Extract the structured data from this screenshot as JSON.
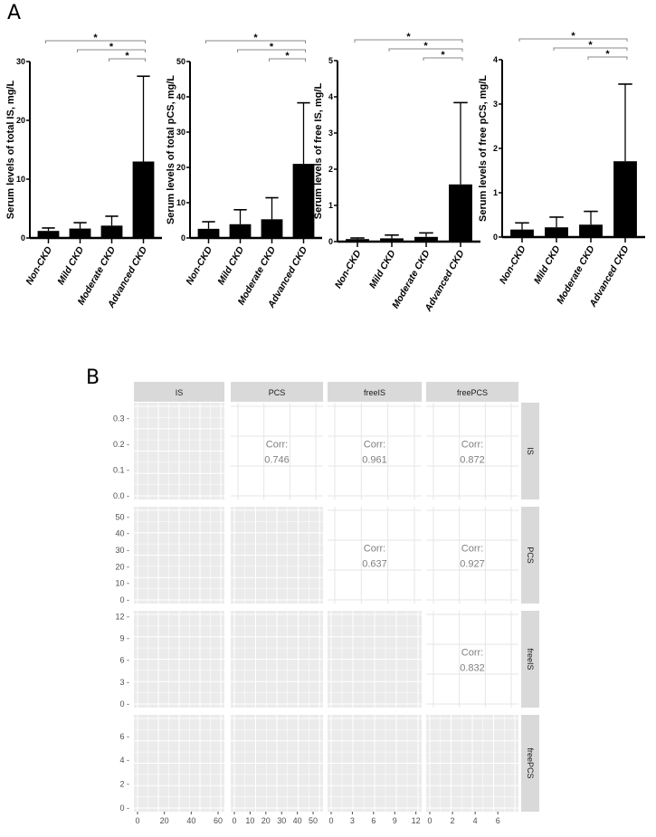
{
  "panel_a": {
    "label": "A",
    "categories": [
      "Non-CKD",
      "Mild CKD",
      "Moderate CKD",
      "Advanced CKD"
    ],
    "significance_marker": "*"
  },
  "panel_b": {
    "label": "B",
    "variables": [
      "IS",
      "PCS",
      "freeIS",
      "freePCS"
    ],
    "corr_label": "Corr:"
  },
  "chart_data": [
    {
      "type": "bar",
      "panel": "A1",
      "title": "",
      "xlabel": "",
      "ylabel": "Serum levels of  total IS,  mg/L",
      "categories": [
        "Non-CKD",
        "Mild CKD",
        "Moderate CKD",
        "Advanced CKD"
      ],
      "values": [
        1.2,
        1.6,
        2.1,
        13.0
      ],
      "error_upper": [
        1.7,
        2.6,
        3.7,
        27.5
      ],
      "ylim": [
        0,
        30
      ],
      "yticks": [
        0,
        10,
        20,
        30
      ],
      "significance": [
        [
          "Non-CKD",
          "Advanced CKD",
          "*"
        ],
        [
          "Mild CKD",
          "Advanced CKD",
          "*"
        ],
        [
          "Moderate CKD",
          "Advanced CKD",
          "*"
        ]
      ]
    },
    {
      "type": "bar",
      "panel": "A2",
      "title": "",
      "xlabel": "",
      "ylabel": "Serum levels of  total pCS,  mg/L",
      "categories": [
        "Non-CKD",
        "Mild CKD",
        "Moderate CKD",
        "Advanced CKD"
      ],
      "values": [
        2.6,
        3.9,
        5.3,
        21.0
      ],
      "error_upper": [
        4.6,
        8.0,
        11.4,
        38.3
      ],
      "ylim": [
        0,
        50
      ],
      "yticks": [
        0,
        10,
        20,
        30,
        40,
        50
      ],
      "significance": [
        [
          "Non-CKD",
          "Advanced CKD",
          "*"
        ],
        [
          "Mild CKD",
          "Advanced CKD",
          "*"
        ],
        [
          "Moderate CKD",
          "Advanced CKD",
          "*"
        ]
      ]
    },
    {
      "type": "bar",
      "panel": "A3",
      "title": "",
      "xlabel": "",
      "ylabel": "Serum levels of  free IS,  mg/L",
      "categories": [
        "Non-CKD",
        "Mild CKD",
        "Moderate CKD",
        "Advanced CKD"
      ],
      "values": [
        0.07,
        0.09,
        0.13,
        1.58
      ],
      "error_upper": [
        0.1,
        0.18,
        0.24,
        3.84
      ],
      "ylim": [
        0,
        5
      ],
      "yticks": [
        0,
        1,
        2,
        3,
        4,
        5
      ],
      "significance": [
        [
          "Non-CKD",
          "Advanced CKD",
          "*"
        ],
        [
          "Mild CKD",
          "Advanced CKD",
          "*"
        ],
        [
          "Moderate CKD",
          "Advanced CKD",
          "*"
        ]
      ]
    },
    {
      "type": "bar",
      "panel": "A4",
      "title": "",
      "xlabel": "",
      "ylabel": "Serum levels of  free pCS,  mg/L",
      "categories": [
        "Non-CKD",
        "Mild CKD",
        "Moderate CKD",
        "Advanced CKD"
      ],
      "values": [
        0.17,
        0.22,
        0.28,
        1.71
      ],
      "error_upper": [
        0.32,
        0.45,
        0.58,
        3.45
      ],
      "ylim": [
        0,
        4
      ],
      "yticks": [
        0,
        1,
        2,
        3,
        4
      ],
      "significance": [
        [
          "Non-CKD",
          "Advanced CKD",
          "*"
        ],
        [
          "Mild CKD",
          "Advanced CKD",
          "*"
        ],
        [
          "Moderate CKD",
          "Advanced CKD",
          "*"
        ]
      ]
    },
    {
      "type": "scatter",
      "panel": "B",
      "title": "Pairwise scatter-plot matrix (ggpairs)",
      "variables": [
        "IS",
        "PCS",
        "freeIS",
        "freePCS"
      ],
      "correlations": {
        "IS-PCS": 0.746,
        "IS-freeIS": 0.961,
        "IS-freePCS": 0.872,
        "PCS-freeIS": 0.637,
        "PCS-freePCS": 0.927,
        "freeIS-freePCS": 0.832
      },
      "axis_ticks": {
        "IS_density_y": [
          "0.0",
          "0.1",
          "0.2",
          "0.3"
        ],
        "PCS_y": [
          "0",
          "10",
          "20",
          "30",
          "40",
          "50"
        ],
        "freeIS_y": [
          "0",
          "3",
          "6",
          "9",
          "12"
        ],
        "freePCS_y": [
          "0",
          "2",
          "4",
          "6"
        ],
        "IS_x": [
          "0",
          "20",
          "40",
          "60"
        ],
        "PCS_x": [
          "0",
          "10",
          "20",
          "30",
          "40",
          "50"
        ],
        "freeIS_x": [
          "0",
          "3",
          "6",
          "9",
          "12"
        ],
        "freePCS_x": [
          "0",
          "2",
          "4",
          "6"
        ]
      },
      "ranges": {
        "IS": [
          0,
          60
        ],
        "PCS": [
          0,
          52
        ],
        "freeIS": [
          0,
          11.6
        ],
        "freePCS": [
          0,
          7.2
        ]
      },
      "diagonal": "density",
      "upper": "correlation",
      "lower": "scatter"
    }
  ]
}
